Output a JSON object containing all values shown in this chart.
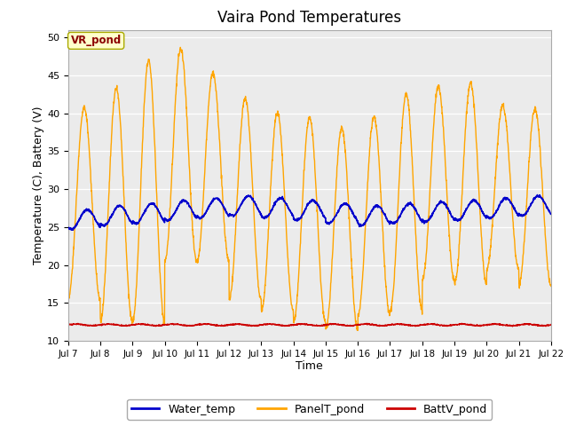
{
  "title": "Vaira Pond Temperatures",
  "xlabel": "Time",
  "ylabel": "Temperature (C), Battery (V)",
  "ylim": [
    10,
    51
  ],
  "yticks": [
    10,
    15,
    20,
    25,
    30,
    35,
    40,
    45,
    50
  ],
  "xtick_labels": [
    "Jul 7",
    "Jul 8",
    "Jul 9",
    "Jul 10",
    "Jul 11",
    "Jul 12",
    "Jul 13",
    "Jul 14",
    "Jul 15",
    "Jul 16",
    "Jul 17",
    "Jul 18",
    "Jul 19",
    "Jul 20",
    "Jul 21",
    "Jul 22"
  ],
  "annotation_text": "VR_pond",
  "annotation_color": "#8B0000",
  "annotation_bg": "#FFFFCC",
  "water_temp_color": "#0000CC",
  "panel_temp_color": "#FFA500",
  "batt_color": "#CC0000",
  "bg_color": "#FFFFFF",
  "plot_bg_color": "#EBEBEB",
  "legend_labels": [
    "Water_temp",
    "PanelT_pond",
    "BattV_pond"
  ],
  "n_days": 15,
  "water_temp_base": 26.5,
  "batt_base": 12.1,
  "panel_day_peaks": [
    40.8,
    43.3,
    47.0,
    48.5,
    45.3,
    42.0,
    40.0,
    39.5,
    38.0,
    39.5,
    42.5,
    43.5,
    44.0,
    41.0,
    40.5
  ],
  "panel_night_mins": [
    15.5,
    12.5,
    12.5,
    20.5,
    20.5,
    15.5,
    14.0,
    12.5,
    11.5,
    13.5,
    14.0,
    18.0,
    17.5,
    19.5,
    17.5
  ]
}
